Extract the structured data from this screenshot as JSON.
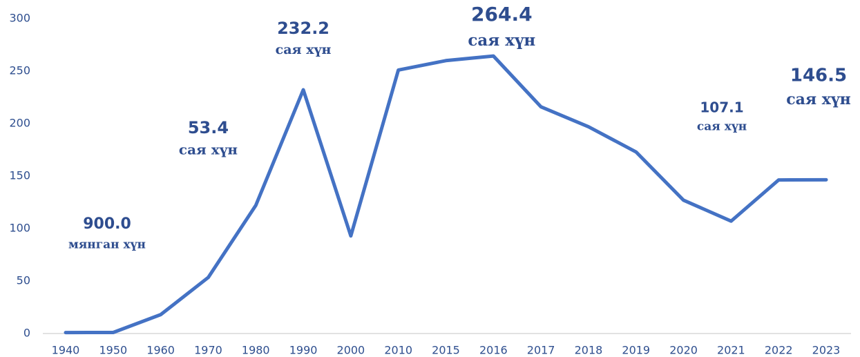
{
  "chart_data": {
    "type": "line",
    "categories": [
      "1940",
      "1950",
      "1960",
      "1970",
      "1980",
      "1990",
      "2000",
      "2010",
      "2015",
      "2016",
      "2017",
      "2018",
      "2019",
      "2020",
      "2021",
      "2022",
      "2023"
    ],
    "series": [
      {
        "color": "#4472c4",
        "values": [
          0.9,
          1,
          18,
          53.4,
          122,
          232.2,
          93,
          251,
          260,
          264.4,
          216,
          197,
          173,
          127,
          107.1,
          146.3,
          146.5
        ]
      }
    ],
    "value_labels": [
      "900.0",
      null,
      null,
      "53.4",
      null,
      "232.2",
      null,
      null,
      null,
      "264.4",
      null,
      null,
      null,
      null,
      "107.1",
      null,
      "146.5"
    ],
    "value_label_units": [
      "мянган хүн",
      null,
      null,
      "сая хүн",
      null,
      "сая хүн",
      null,
      null,
      null,
      "сая хүн",
      null,
      null,
      null,
      null,
      "сая хүн",
      null,
      "сая хүн"
    ],
    "ylim": [
      0,
      300
    ],
    "yticks": [
      0,
      50,
      100,
      150,
      200,
      250,
      300
    ],
    "grid": false
  }
}
